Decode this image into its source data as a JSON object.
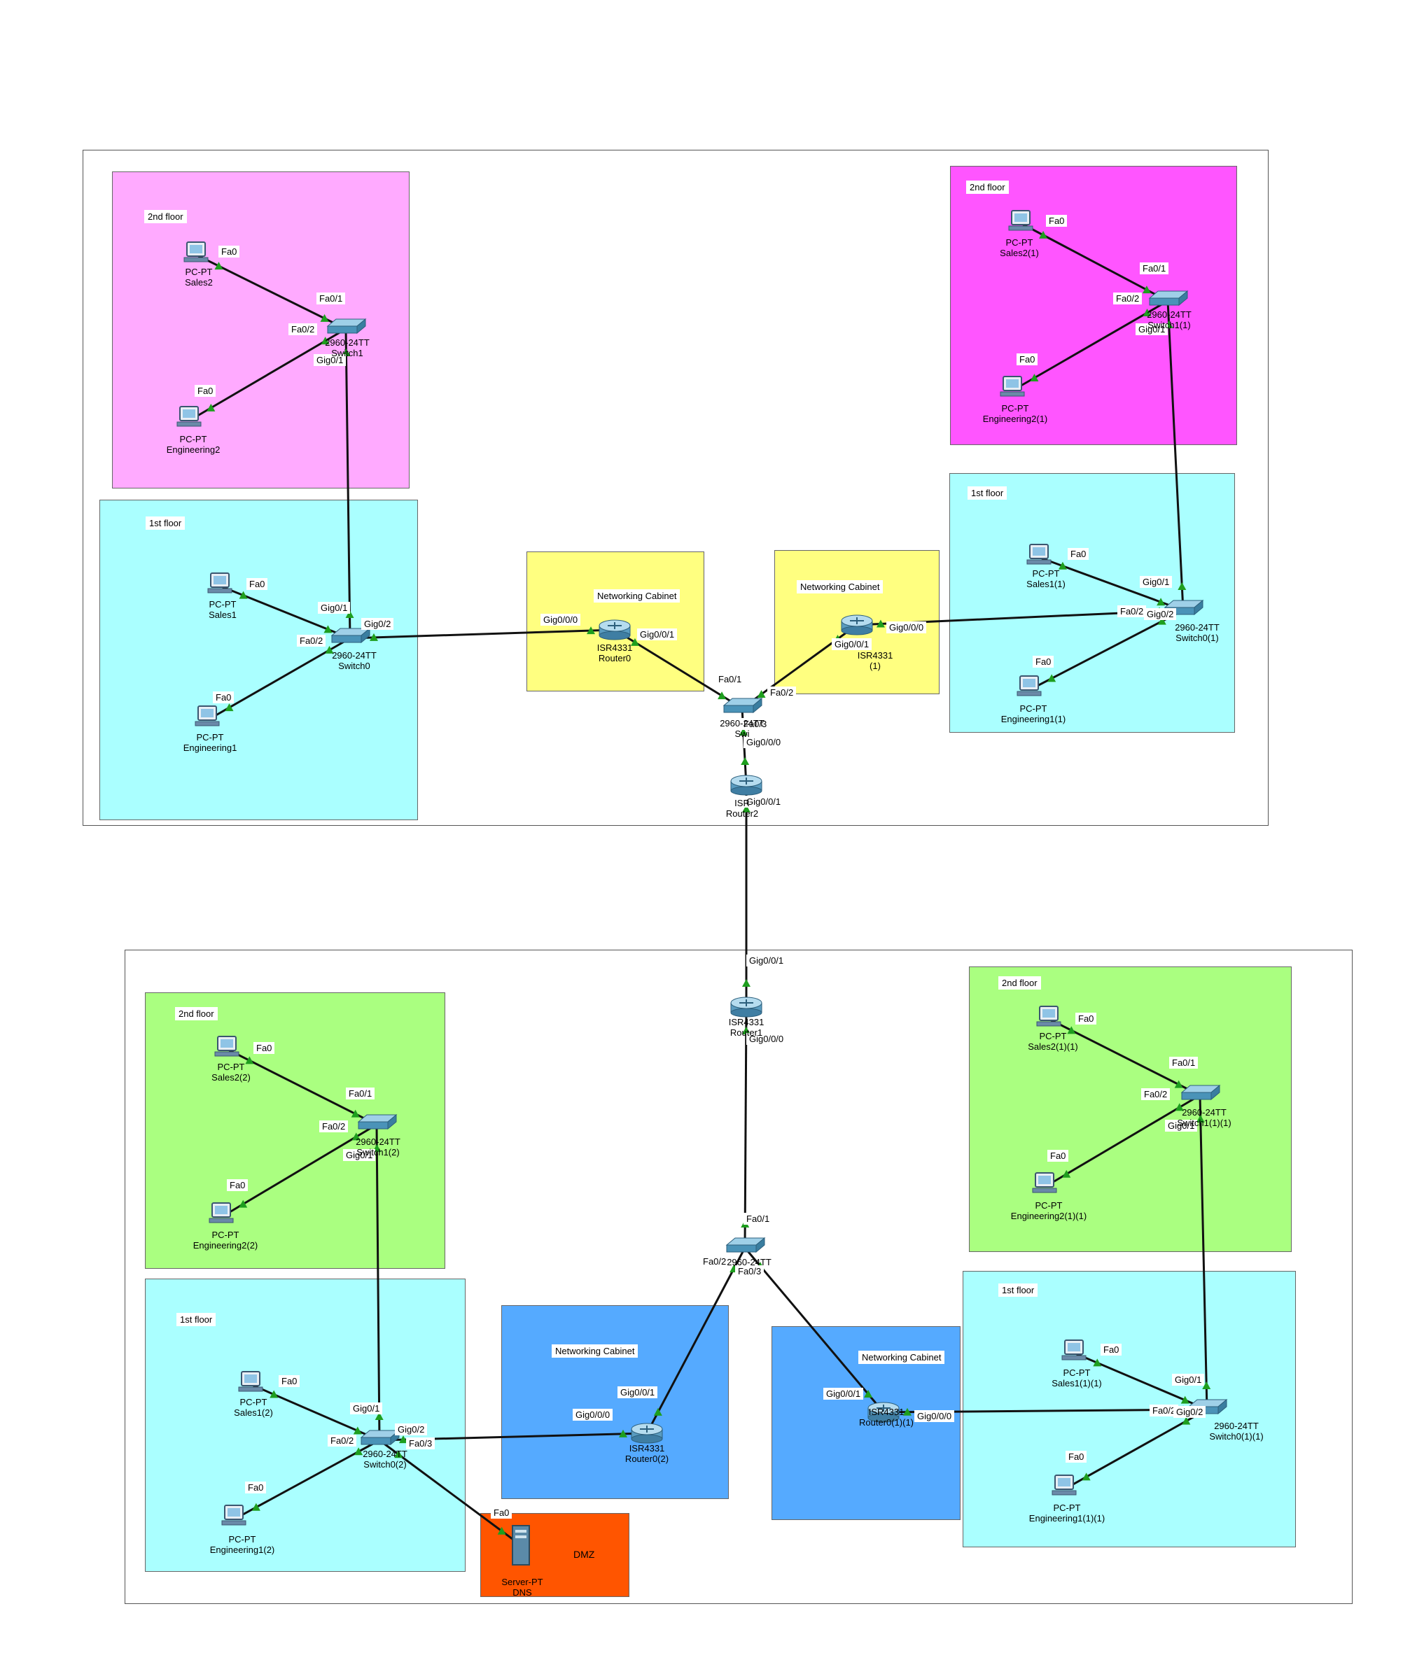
{
  "zones": [
    {
      "id": "z-a2",
      "label": "2nd floor",
      "color": "#ffaaff"
    },
    {
      "id": "z-a1",
      "label": "1st floor",
      "color": "#aaffff"
    },
    {
      "id": "z-anc",
      "label": "Networking Cabinet",
      "color": "#ffff80"
    },
    {
      "id": "z-bnc",
      "label": "Networking Cabinet",
      "color": "#ffff80"
    },
    {
      "id": "z-b2",
      "label": "2nd floor",
      "color": "#ff55ff"
    },
    {
      "id": "z-b1",
      "label": "1st floor",
      "color": "#aaffff"
    },
    {
      "id": "z-c2",
      "label": "2nd floor",
      "color": "#aaff80"
    },
    {
      "id": "z-c1",
      "label": "1st floor",
      "color": "#aaffff"
    },
    {
      "id": "z-cnc",
      "label": "Networking Cabinet",
      "color": "#55aaff"
    },
    {
      "id": "z-dmz",
      "label": "DMZ",
      "color": "#ff5500"
    },
    {
      "id": "z-dnc",
      "label": "Networking Cabinet",
      "color": "#55aaff"
    },
    {
      "id": "z-d2",
      "label": "2nd floor",
      "color": "#aaff80"
    },
    {
      "id": "z-d1",
      "label": "1st floor",
      "color": "#aaffff"
    }
  ],
  "devices": {
    "sales2": {
      "model": "PC-PT",
      "name": "Sales2",
      "kind": "pc"
    },
    "eng2": {
      "model": "PC-PT",
      "name": "Engineering2",
      "kind": "pc"
    },
    "sw1": {
      "model": "2960-24TT",
      "name": "Switch1",
      "kind": "switch"
    },
    "sales1": {
      "model": "PC-PT",
      "name": "Sales1",
      "kind": "pc"
    },
    "eng1": {
      "model": "PC-PT",
      "name": "Engineering1",
      "kind": "pc"
    },
    "sw0": {
      "model": "2960-24TT",
      "name": "Switch0",
      "kind": "switch"
    },
    "r0": {
      "model": "ISR4331",
      "name": "Router0",
      "kind": "router"
    },
    "r0b": {
      "model": "ISR4331",
      "name": "(1)",
      "kind": "router"
    },
    "swc": {
      "model": "2960-24TT",
      "name": "Swi",
      "kind": "switch"
    },
    "r2": {
      "model": "ISR",
      "name": "Router2",
      "kind": "router"
    },
    "sales2b": {
      "model": "PC-PT",
      "name": "Sales2(1)",
      "kind": "pc"
    },
    "eng2b": {
      "model": "PC-PT",
      "name": "Engineering2(1)",
      "kind": "pc"
    },
    "sw1b": {
      "model": "2960-24TT",
      "name": "Switch1(1)",
      "kind": "switch"
    },
    "sales1b": {
      "model": "PC-PT",
      "name": "Sales1(1)",
      "kind": "pc"
    },
    "eng1b": {
      "model": "PC-PT",
      "name": "Engineering1(1)",
      "kind": "pc"
    },
    "sw0b": {
      "model": "2960-24TT",
      "name": "Switch0(1)",
      "kind": "switch"
    },
    "r1": {
      "model": "ISR4331",
      "name": "Router1",
      "kind": "router"
    },
    "swd": {
      "model": "2960-24TT",
      "name": "",
      "kind": "switch"
    },
    "sales2c": {
      "model": "PC-PT",
      "name": "Sales2(2)",
      "kind": "pc"
    },
    "eng2c": {
      "model": "PC-PT",
      "name": "Engineering2(2)",
      "kind": "pc"
    },
    "sw1c": {
      "model": "2960-24TT",
      "name": "Switch1(2)",
      "kind": "switch"
    },
    "sales1c": {
      "model": "PC-PT",
      "name": "Sales1(2)",
      "kind": "pc"
    },
    "eng1c": {
      "model": "PC-PT",
      "name": "Engineering1(2)",
      "kind": "pc"
    },
    "sw0c": {
      "model": "2960-24TT",
      "name": "Switch0(2)",
      "kind": "switch"
    },
    "r0c": {
      "model": "ISR4331",
      "name": "Router0(2)",
      "kind": "router"
    },
    "dns": {
      "model": "Server-PT",
      "name": "DNS",
      "kind": "server"
    },
    "r0d": {
      "model": "ISR4331",
      "name": "Router0(1)(1)",
      "kind": "router"
    },
    "sales2d": {
      "model": "PC-PT",
      "name": "Sales2(1)(1)",
      "kind": "pc"
    },
    "eng2d": {
      "model": "PC-PT",
      "name": "Engineering2(1)(1)",
      "kind": "pc"
    },
    "sw1d": {
      "model": "2960-24TT",
      "name": "Switch1(1)(1)",
      "kind": "switch"
    },
    "sales1d": {
      "model": "PC-PT",
      "name": "Sales1(1)(1)",
      "kind": "pc"
    },
    "eng1d": {
      "model": "PC-PT",
      "name": "Engineering1(1)(1)",
      "kind": "pc"
    },
    "sw0d": {
      "model": "2960-24TT",
      "name": "Switch0(1)(1)",
      "kind": "switch"
    }
  },
  "links": [
    {
      "a": "sales2",
      "b": "sw1",
      "pa": "Fa0",
      "pb": "Fa0/1"
    },
    {
      "a": "eng2",
      "b": "sw1",
      "pa": "Fa0",
      "pb": "Fa0/2"
    },
    {
      "a": "sw1",
      "b": "sw0",
      "pa": "Gig0/1",
      "pb": "Gig0/1"
    },
    {
      "a": "sales1",
      "b": "sw0",
      "pa": "Fa0",
      "pb": ""
    },
    {
      "a": "eng1",
      "b": "sw0",
      "pa": "Fa0",
      "pb": "Fa0/2"
    },
    {
      "a": "sw0",
      "b": "r0",
      "pa": "Gig0/2",
      "pb": "Gig0/0/0"
    },
    {
      "a": "r0",
      "b": "swc",
      "pa": "Gig0/0/1",
      "pb": "Fa0/1"
    },
    {
      "a": "r0b",
      "b": "swc",
      "pa": "Gig0/0/1",
      "pb": "Fa0/2"
    },
    {
      "a": "r0b",
      "b": "sw0b",
      "pa": "Gig0/0/0",
      "pb": "Fa0/2"
    },
    {
      "a": "swc",
      "b": "r2",
      "pa": "Fa0/3",
      "pb": "Gig0/0/0"
    },
    {
      "a": "sales2b",
      "b": "sw1b",
      "pa": "Fa0",
      "pb": "Fa0/1"
    },
    {
      "a": "eng2b",
      "b": "sw1b",
      "pa": "Fa0",
      "pb": "Fa0/2"
    },
    {
      "a": "sw1b",
      "b": "sw0b",
      "pa": "Gig0/1",
      "pb": "Gig0/1"
    },
    {
      "a": "sales1b",
      "b": "sw0b",
      "pa": "Fa0",
      "pb": ""
    },
    {
      "a": "eng1b",
      "b": "sw0b",
      "pa": "Fa0",
      "pb": "Gig0/2"
    },
    {
      "a": "r2",
      "b": "r1",
      "pa": "Gig0/0/1",
      "pb": "Gig0/0/1"
    },
    {
      "a": "r1",
      "b": "swd",
      "pa": "Gig0/0/0",
      "pb": "Fa0/1"
    },
    {
      "a": "swd",
      "b": "r0c",
      "pa": "Fa0/2",
      "pb": "Gig0/0/1"
    },
    {
      "a": "swd",
      "b": "r0d",
      "pa": "Fa0/3",
      "pb": "Gig0/0/1"
    },
    {
      "a": "sales2c",
      "b": "sw1c",
      "pa": "Fa0",
      "pb": "Fa0/1"
    },
    {
      "a": "eng2c",
      "b": "sw1c",
      "pa": "Fa0",
      "pb": "Fa0/2"
    },
    {
      "a": "sw1c",
      "b": "sw0c",
      "pa": "Gig0/1",
      "pb": "Gig0/1"
    },
    {
      "a": "sales1c",
      "b": "sw0c",
      "pa": "Fa0",
      "pb": ""
    },
    {
      "a": "eng1c",
      "b": "sw0c",
      "pa": "Fa0",
      "pb": "Fa0/2"
    },
    {
      "a": "sw0c",
      "b": "r0c",
      "pa": "Gig0/2",
      "pb": "Gig0/0/0"
    },
    {
      "a": "sw0c",
      "b": "dns",
      "pa": "Fa0/3",
      "pb": "Fa0"
    },
    {
      "a": "r0d",
      "b": "sw0d",
      "pa": "Gig0/0/0",
      "pb": "Fa0/2"
    },
    {
      "a": "sales2d",
      "b": "sw1d",
      "pa": "Fa0",
      "pb": "Fa0/1"
    },
    {
      "a": "eng2d",
      "b": "sw1d",
      "pa": "Fa0",
      "pb": "Fa0/2"
    },
    {
      "a": "sw1d",
      "b": "sw0d",
      "pa": "Gig0/1",
      "pb": "Gig0/1"
    },
    {
      "a": "sales1d",
      "b": "sw0d",
      "pa": "Fa0",
      "pb": ""
    },
    {
      "a": "eng1d",
      "b": "sw0d",
      "pa": "Fa0",
      "pb": "Gig0/2"
    }
  ],
  "style": {
    "link_color": "#111111",
    "link_end_color": "#1e9e1e",
    "switch_color": "#4a93b8",
    "router_color": "#5a9cc0",
    "pc_color": "#6a8aa8"
  }
}
